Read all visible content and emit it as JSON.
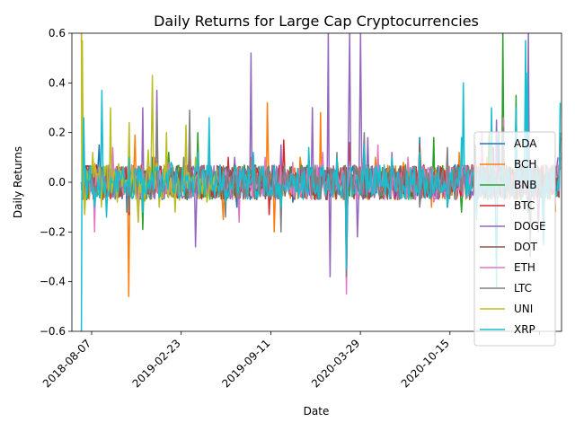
{
  "chart_data": {
    "type": "line",
    "title": "Daily Returns for Large Cap Cryptocurrencies",
    "xlabel": "Date",
    "ylabel": "Daily Returns",
    "xlim": [
      "2018-07-17",
      "2021-06-28"
    ],
    "ylim": [
      -0.6,
      0.6
    ],
    "x_ticks": [
      "2018-08-07",
      "2019-02-23",
      "2019-09-11",
      "2020-03-29",
      "2020-10-15",
      ""
    ],
    "y_ticks": [
      "−0.6",
      "−0.4",
      "−0.2",
      "0.0",
      "0.2",
      "0.4",
      "0.6"
    ],
    "legend_position": "lower-right",
    "grid": false,
    "series": [
      {
        "name": "ADA",
        "color": "#1f77b4",
        "x": [
          "2018-08-07",
          "2018-09-15",
          "2018-11-15",
          "2019-01-10",
          "2019-03-20",
          "2019-05-15",
          "2019-07-15",
          "2019-09-11",
          "2019-11-15",
          "2020-01-15",
          "2020-03-12",
          "2020-04-20",
          "2020-06-20",
          "2020-08-20",
          "2020-10-15",
          "2020-12-20",
          "2021-02-10",
          "2021-04-15",
          "2021-06-20"
        ],
        "y": [
          0.0,
          0.15,
          -0.12,
          0.1,
          0.08,
          0.12,
          -0.1,
          0.05,
          -0.08,
          0.06,
          -0.1,
          0.12,
          0.07,
          0.18,
          -0.05,
          0.1,
          0.2,
          -0.12,
          0.05
        ]
      },
      {
        "name": "BCH",
        "color": "#ff7f0e",
        "x": [
          "2018-08-07",
          "2018-11-19",
          "2018-12-03",
          "2019-01-15",
          "2019-04-02",
          "2019-06-15",
          "2019-08-15",
          "2019-09-20",
          "2019-10-05",
          "2019-12-01",
          "2020-01-15",
          "2020-03-12",
          "2020-05-15",
          "2020-07-15",
          "2020-09-15",
          "2020-11-15",
          "2021-01-15",
          "2021-04-15",
          "2021-06-15"
        ],
        "y": [
          0.6,
          -0.46,
          0.19,
          0.1,
          0.2,
          -0.15,
          0.1,
          0.32,
          -0.2,
          0.1,
          0.28,
          -0.2,
          0.1,
          0.08,
          -0.1,
          0.12,
          0.1,
          0.15,
          -0.12
        ]
      },
      {
        "name": "BNB",
        "color": "#2ca02c",
        "x": [
          "2018-08-07",
          "2018-10-15",
          "2018-12-20",
          "2019-02-15",
          "2019-04-20",
          "2019-06-20",
          "2019-08-20",
          "2019-10-20",
          "2019-12-20",
          "2020-02-20",
          "2020-03-12",
          "2020-05-20",
          "2020-07-20",
          "2020-09-20",
          "2020-11-20",
          "2021-01-20",
          "2021-02-19",
          "2021-03-20",
          "2021-05-19",
          "2021-06-25"
        ],
        "y": [
          0.0,
          0.08,
          -0.19,
          0.12,
          0.2,
          -0.08,
          0.1,
          -0.1,
          0.08,
          0.1,
          -0.25,
          0.12,
          0.07,
          0.18,
          -0.12,
          0.2,
          0.6,
          0.35,
          -0.25,
          0.2
        ]
      },
      {
        "name": "BTC",
        "color": "#d62728",
        "x": [
          "2018-08-07",
          "2018-11-20",
          "2019-02-15",
          "2019-04-02",
          "2019-06-26",
          "2019-09-24",
          "2019-10-26",
          "2019-12-20",
          "2020-03-12",
          "2020-03-19",
          "2020-06-20",
          "2020-09-20",
          "2020-12-20",
          "2021-01-29",
          "2021-05-19",
          "2021-06-25"
        ],
        "y": [
          0.0,
          -0.13,
          0.08,
          0.15,
          0.1,
          -0.13,
          0.17,
          0.06,
          -0.39,
          0.16,
          0.05,
          0.04,
          0.1,
          0.14,
          -0.13,
          0.06
        ]
      },
      {
        "name": "DOGE",
        "color": "#9467bd",
        "x": [
          "2018-08-07",
          "2018-12-20",
          "2019-01-20",
          "2019-04-15",
          "2019-07-10",
          "2019-08-15",
          "2019-10-20",
          "2019-12-28",
          "2020-02-01",
          "2020-02-05",
          "2020-03-12",
          "2020-03-19",
          "2020-04-05",
          "2020-04-12",
          "2020-04-28",
          "2020-06-20",
          "2020-08-20",
          "2020-10-20",
          "2020-12-20",
          "2021-02-05",
          "2021-04-16",
          "2021-05-08",
          "2021-06-20"
        ],
        "y": [
          0.0,
          0.3,
          0.37,
          -0.26,
          0.1,
          0.52,
          0.15,
          0.3,
          0.6,
          -0.38,
          -0.3,
          0.6,
          -0.22,
          0.6,
          0.18,
          0.12,
          0.1,
          -0.1,
          0.15,
          0.25,
          0.6,
          -0.2,
          0.1
        ]
      },
      {
        "name": "DOT",
        "color": "#8c564b",
        "x": [
          "2018-08-07",
          "2019-01-20",
          "2019-06-20",
          "2019-12-20",
          "2020-03-14",
          "2020-04-20",
          "2020-06-20",
          "2020-08-20",
          "2020-10-20",
          "2020-12-20",
          "2021-02-20",
          "2021-04-20",
          "2021-06-25"
        ],
        "y": [
          0.0,
          0.08,
          -0.06,
          0.07,
          -0.1,
          0.1,
          0.08,
          0.15,
          -0.1,
          0.12,
          0.2,
          -0.25,
          0.18
        ]
      },
      {
        "name": "ETH",
        "color": "#e377c2",
        "x": [
          "2018-08-07",
          "2018-09-05",
          "2018-10-15",
          "2018-12-10",
          "2019-02-15",
          "2019-05-15",
          "2019-07-20",
          "2019-09-15",
          "2019-11-15",
          "2020-01-20",
          "2020-03-12",
          "2020-05-20",
          "2020-07-25",
          "2020-09-20",
          "2020-11-20",
          "2021-01-04",
          "2021-02-20",
          "2021-05-19",
          "2021-06-25"
        ],
        "y": [
          0.0,
          -0.2,
          0.14,
          -0.16,
          0.08,
          0.12,
          -0.16,
          0.1,
          0.08,
          0.12,
          -0.45,
          0.15,
          0.1,
          -0.08,
          0.1,
          0.2,
          0.26,
          -0.25,
          0.12
        ]
      },
      {
        "name": "LTC",
        "color": "#7f7f7f",
        "x": [
          "2018-08-07",
          "2018-11-20",
          "2019-01-20",
          "2019-03-20",
          "2019-04-02",
          "2019-06-20",
          "2019-08-20",
          "2019-10-20",
          "2019-12-20",
          "2020-02-20",
          "2020-03-12",
          "2020-04-20",
          "2020-06-20",
          "2020-08-20",
          "2020-10-20",
          "2020-12-20",
          "2021-02-20",
          "2021-04-20",
          "2021-06-25"
        ],
        "y": [
          0.0,
          -0.12,
          0.28,
          0.1,
          0.29,
          -0.14,
          0.1,
          -0.2,
          0.1,
          0.12,
          -0.38,
          0.2,
          0.07,
          -0.1,
          0.14,
          0.15,
          0.22,
          -0.3,
          0.1
        ]
      },
      {
        "name": "UNI",
        "color": "#bcbd22",
        "x": [
          "2018-08-07",
          "2018-08-09",
          "2018-08-14",
          "2018-09-01",
          "2018-09-20",
          "2018-10-10",
          "2018-10-25",
          "2018-11-20",
          "2018-12-10",
          "2019-01-01",
          "2019-01-10",
          "2019-01-25",
          "2019-02-10",
          "2019-03-01",
          "2019-03-25",
          "2019-04-15",
          "2019-05-10",
          "2019-06-01"
        ],
        "y": [
          0.6,
          0.57,
          -0.13,
          0.12,
          -0.1,
          0.3,
          -0.08,
          0.24,
          -0.16,
          0.13,
          0.43,
          -0.1,
          0.2,
          -0.12,
          0.23,
          0.1,
          -0.08,
          0.05
        ]
      },
      {
        "name": "XRP",
        "color": "#17becf",
        "x": [
          "2018-08-07",
          "2018-08-09",
          "2018-08-12",
          "2018-09-05",
          "2018-09-21",
          "2018-10-01",
          "2018-11-20",
          "2018-12-20",
          "2019-02-20",
          "2019-04-20",
          "2019-05-15",
          "2019-06-20",
          "2019-08-20",
          "2019-10-20",
          "2019-12-20",
          "2020-02-20",
          "2020-03-12",
          "2020-04-20",
          "2020-06-20",
          "2020-08-20",
          "2020-10-20",
          "2020-11-20",
          "2020-11-24",
          "2020-12-23",
          "2021-01-25",
          "2021-02-05",
          "2021-03-20",
          "2021-04-10",
          "2021-04-14",
          "2021-05-19",
          "2021-06-25"
        ],
        "y": [
          -0.6,
          0.02,
          0.26,
          -0.1,
          0.37,
          -0.14,
          0.1,
          -0.12,
          0.08,
          0.12,
          0.26,
          -0.08,
          0.12,
          -0.1,
          0.14,
          0.1,
          -0.35,
          0.15,
          0.1,
          0.12,
          -0.1,
          0.18,
          0.4,
          -0.15,
          0.3,
          -0.42,
          0.3,
          0.57,
          0.44,
          -0.25,
          0.32
        ]
      }
    ]
  }
}
